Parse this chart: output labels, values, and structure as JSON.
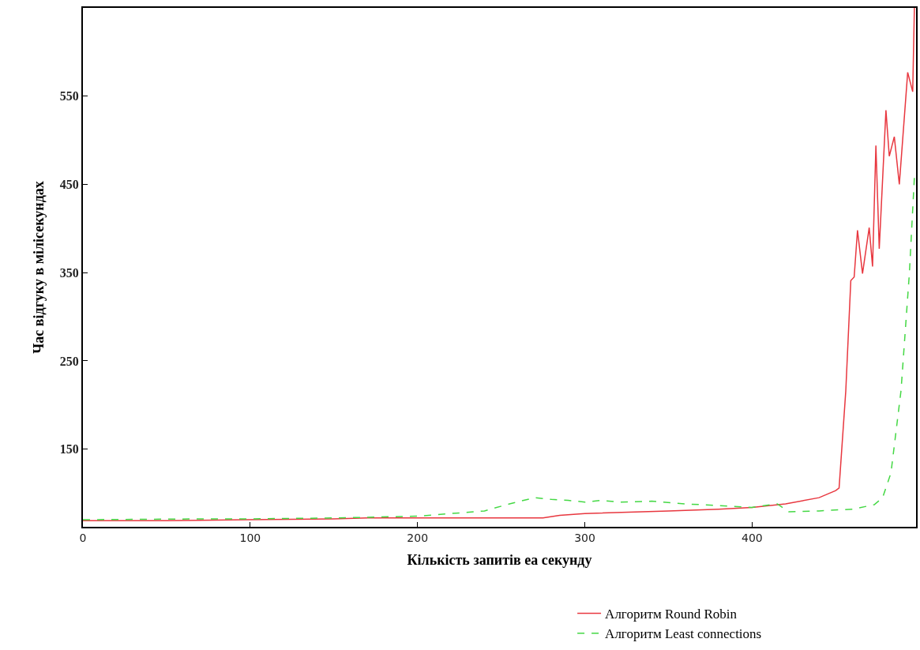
{
  "chart_data": {
    "type": "line",
    "xlabel": "Кількість запитів еа секунду",
    "ylabel": "Час відгуку в мілісекундах",
    "xlim": [
      0,
      498
    ],
    "xticks": [
      0,
      100,
      200,
      300,
      400
    ],
    "ylim": [
      62,
      650
    ],
    "yticks": [
      150,
      250,
      350,
      450,
      550
    ],
    "legend": "bottom right",
    "series": [
      {
        "name": "Алгоритм Round Robin",
        "color": "#e8373f",
        "line_style": "solid",
        "x": [
          0,
          50,
          100,
          150,
          170,
          200,
          250,
          275,
          285,
          300,
          350,
          380,
          400,
          420,
          440,
          450,
          452,
          456,
          459,
          461,
          463,
          466,
          470,
          472,
          474,
          476,
          480,
          482,
          485,
          488,
          493,
          496,
          497
        ],
        "values": [
          69,
          69,
          70,
          71,
          72,
          72,
          72,
          72,
          75,
          77,
          80,
          82,
          84,
          88,
          95,
          103,
          106,
          216,
          341,
          345,
          398,
          349,
          401,
          357,
          494,
          377,
          534,
          482,
          504,
          450,
          577,
          555,
          650
        ]
      },
      {
        "name": "Алгоритм Least connections",
        "color": "#44d844",
        "line_style": "dashed",
        "x": [
          0,
          75,
          100,
          150,
          200,
          220,
          240,
          255,
          270,
          280,
          290,
          300,
          310,
          320,
          340,
          360,
          380,
          400,
          415,
          422,
          440,
          460,
          473,
          478,
          483,
          489,
          494,
          497
        ],
        "values": [
          70,
          71,
          71,
          72,
          74,
          77,
          80,
          88,
          95,
          93,
          92,
          90,
          92,
          90,
          91,
          88,
          86,
          84,
          88,
          79,
          80,
          82,
          87,
          95,
          123,
          216,
          349,
          458
        ]
      }
    ]
  }
}
